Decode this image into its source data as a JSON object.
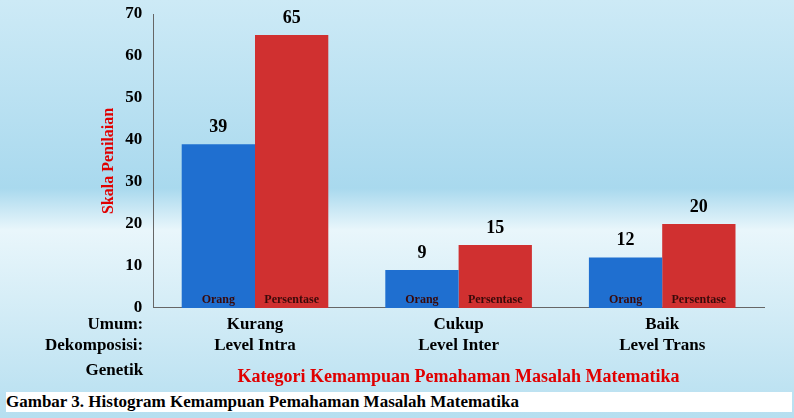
{
  "chart_data": {
    "type": "bar",
    "categories": [
      [
        "Kurang",
        "Level Intra"
      ],
      [
        "Cukup",
        "Level Inter"
      ],
      [
        "Baik",
        "Level Trans"
      ]
    ],
    "row_headers": [
      "Umum:",
      "Dekomposisi:",
      "Genetik"
    ],
    "series": [
      {
        "name": "Orang",
        "color": "#1f6fd0",
        "values": [
          39,
          9,
          12
        ]
      },
      {
        "name": "Persentase",
        "color": "#d03030",
        "values": [
          65,
          15,
          20
        ]
      }
    ],
    "x_label": "Kategori Kemampuan Pemahaman Masalah Matematika",
    "y_label": "Skala Penilaian",
    "ylim": [
      0,
      70
    ],
    "yticks": [
      0,
      10,
      20,
      30,
      40,
      50,
      60,
      70
    ],
    "grid": false,
    "data_labels": true,
    "caption": "Gambar 3. Histogram Kemampuan Pemahaman Masalah Matematika"
  }
}
